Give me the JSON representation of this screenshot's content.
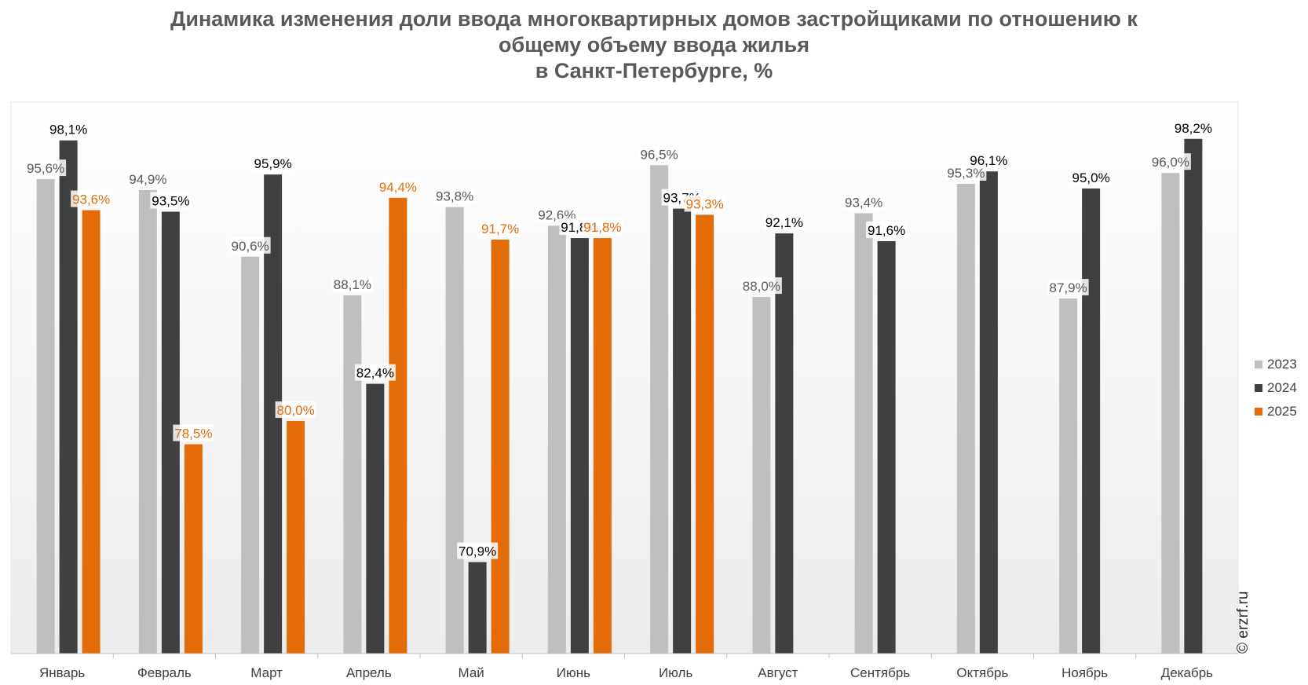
{
  "title_lines": [
    "Динамика изменения доли ввода многоквартирных домов застройщиками по отношению к",
    "общему объему ввода жилья",
    "в Санкт-Петербурге, %"
  ],
  "watermark": "© erzrf.ru",
  "chart_data": {
    "type": "bar",
    "categories": [
      "Январь",
      "Февраль",
      "Март",
      "Апрель",
      "Май",
      "Июнь",
      "Июль",
      "Август",
      "Сентябрь",
      "Октябрь",
      "Ноябрь",
      "Декабрь"
    ],
    "series": [
      {
        "name": "2023",
        "color": "#bfbfbf",
        "label_color": "#595959",
        "values": [
          95.6,
          94.9,
          90.6,
          88.1,
          93.8,
          92.6,
          96.5,
          88.0,
          93.4,
          95.3,
          87.9,
          96.0
        ],
        "labels": [
          "95,6%",
          "94,9%",
          "90,6%",
          "88,1%",
          "93,8%",
          "92,6%",
          "96,5%",
          "88,0%",
          "93,4%",
          "95,3%",
          "87,9%",
          "96,0%"
        ]
      },
      {
        "name": "2024",
        "color": "#404040",
        "label_color": "#000000",
        "values": [
          98.1,
          93.5,
          95.9,
          82.4,
          70.9,
          91.8,
          93.7,
          92.1,
          91.6,
          96.1,
          95.0,
          98.2
        ],
        "labels": [
          "98,1%",
          "93,5%",
          "95,9%",
          "82,4%",
          "70,9%",
          "91,8%",
          "93,7%",
          "92,1%",
          "91,6%",
          "96,1%",
          "95,0%",
          "98,2%"
        ]
      },
      {
        "name": "2025",
        "color": "#e36c09",
        "label_color": "#e36c09",
        "values": [
          93.6,
          78.5,
          80.0,
          94.4,
          91.7,
          91.8,
          93.3,
          null,
          null,
          null,
          null,
          null
        ],
        "labels": [
          "93,6%",
          "78,5%",
          "80,0%",
          "94,4%",
          "91,7%",
          "91,8%",
          "93,3%",
          null,
          null,
          null,
          null,
          null
        ]
      }
    ],
    "ylim": [
      65,
      100
    ],
    "grid": false,
    "legend": "right"
  }
}
